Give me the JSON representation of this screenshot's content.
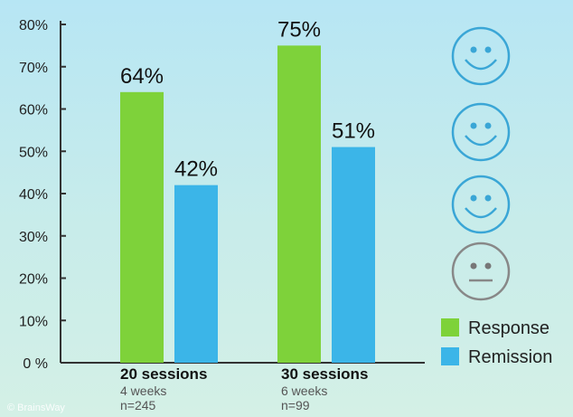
{
  "chart_data": {
    "type": "bar",
    "categories": [
      "20 sessions",
      "30 sessions"
    ],
    "category_details": [
      {
        "duration": "4 weeks",
        "sample": "n=245"
      },
      {
        "duration": "6 weeks",
        "sample": "n=99"
      }
    ],
    "series": [
      {
        "name": "Response",
        "values": [
          64,
          75
        ],
        "labels": [
          "64%",
          "75%"
        ],
        "color": "#7ed23a"
      },
      {
        "name": "Remission",
        "values": [
          42,
          51
        ],
        "labels": [
          "42%",
          "51%"
        ],
        "color": "#3bb5e8"
      }
    ],
    "yticks": [
      "0 %",
      "10%",
      "20%",
      "30%",
      "40%",
      "50%",
      "60%",
      "70%",
      "80%"
    ],
    "ylim": [
      0,
      80
    ],
    "grid": false,
    "legend_position": "bottom-right"
  },
  "faces": [
    {
      "icon": "smiley-face-icon",
      "color": "#3aa6d6"
    },
    {
      "icon": "smiley-face-icon",
      "color": "#3aa6d6"
    },
    {
      "icon": "smiley-face-icon",
      "color": "#3aa6d6"
    },
    {
      "icon": "neutral-face-icon",
      "color": "#888888"
    }
  ],
  "watermark": "© BrainsWay"
}
